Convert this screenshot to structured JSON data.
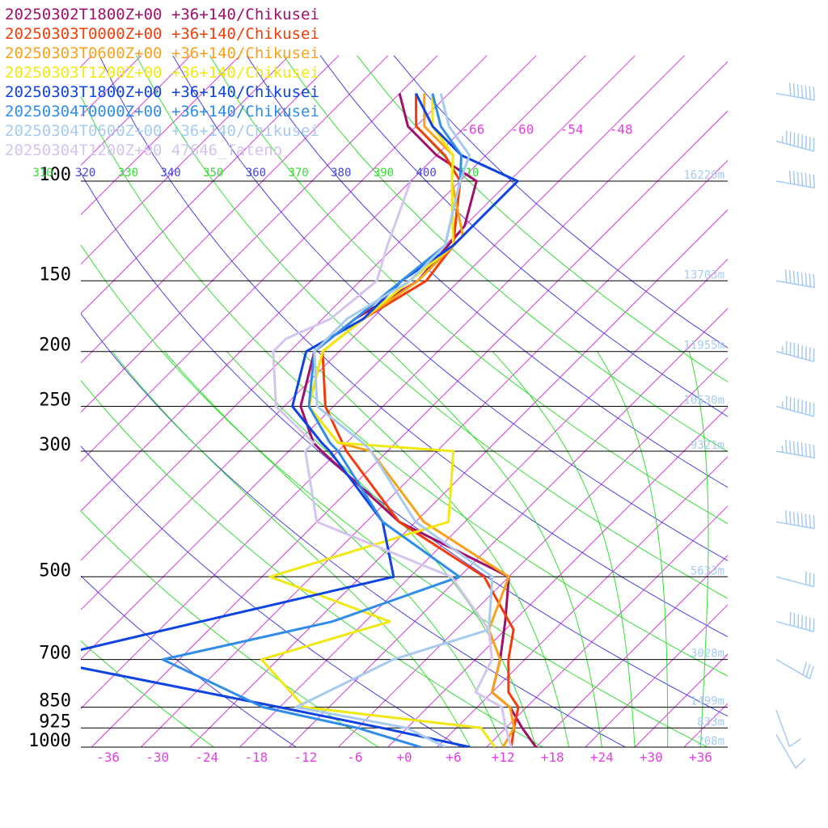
{
  "chart_data": {
    "type": "line",
    "title": "",
    "xlabel": "",
    "ylabel": "",
    "legend": "top-left",
    "legend_entries": [
      {
        "label": "20250302T1800Z+00 +36+140/Chikusei",
        "color": "#a0106a"
      },
      {
        "label": "20250303T0000Z+00 +36+140/Chikusei",
        "color": "#f23c0a"
      },
      {
        "label": "20250303T0600Z+00 +36+140/Chikusei",
        "color": "#f7a21a"
      },
      {
        "label": "20250303T1200Z+00 +36+140/Chikusei",
        "color": "#f0e812"
      },
      {
        "label": "20250303T1800Z+00 +36+140/Chikusei",
        "color": "#0e44e0"
      },
      {
        "label": "20250304T0000Z+00 +36+140/Chikusei",
        "color": "#2f8de8"
      },
      {
        "label": "20250304T0600Z+00 +36+140/Chikusei",
        "color": "#a6cbee"
      },
      {
        "label": "20250304T1200Z+00 47646_Tateno",
        "color": "#d4c4ee"
      }
    ],
    "pressure_levels": [
      {
        "p": 100,
        "label": "100",
        "height": "16220m"
      },
      {
        "p": 150,
        "label": "150",
        "height": "13703m"
      },
      {
        "p": 200,
        "label": "200",
        "height": "11955m"
      },
      {
        "p": 250,
        "label": "250",
        "height": "10530m"
      },
      {
        "p": 300,
        "label": "300",
        "height": "9321m"
      },
      {
        "p": 500,
        "label": "500",
        "height": "5633m"
      },
      {
        "p": 700,
        "label": "700",
        "height": "3028m"
      },
      {
        "p": 850,
        "label": "850",
        "height": "1499m"
      },
      {
        "p": 925,
        "label": "925",
        "height": "833m"
      },
      {
        "p": 1000,
        "label": "1000",
        "height": "208m"
      }
    ],
    "temperature_ticks": [
      "-36",
      "-30",
      "-24",
      "-18",
      "-12",
      "-6",
      "+0",
      "+6",
      "+12",
      "+18",
      "+24",
      "+30",
      "+36"
    ],
    "upper_temperature_labels": [
      "-66",
      "-60",
      "-54",
      "-48"
    ],
    "theta_labels": [
      {
        "value": "310",
        "color": "#33dd33"
      },
      {
        "value": "320",
        "color": "#4444dd"
      },
      {
        "value": "330",
        "color": "#33dd33"
      },
      {
        "value": "340",
        "color": "#4444dd"
      },
      {
        "value": "350",
        "color": "#33dd33"
      },
      {
        "value": "360",
        "color": "#4444dd"
      },
      {
        "value": "370",
        "color": "#33dd33"
      },
      {
        "value": "380",
        "color": "#4444dd"
      },
      {
        "value": "390",
        "color": "#33dd33"
      },
      {
        "value": "400",
        "color": "#4444dd"
      },
      {
        "value": "410",
        "color": "#33dd33"
      }
    ],
    "temperature_range": [
      -36,
      36
    ],
    "pressure_range": [
      100,
      1000
    ],
    "series": [
      {
        "name": "20250302T1800Z+00 +36+140/Chikusei",
        "color": "#a0106a",
        "points": [
          [
            -80,
            70
          ],
          [
            -75,
            80
          ],
          [
            -68,
            90
          ],
          [
            -60,
            100
          ],
          [
            -56,
            120
          ],
          [
            -55,
            150
          ],
          [
            -58,
            175
          ],
          [
            -59,
            200
          ],
          [
            -54,
            250
          ],
          [
            -48,
            290
          ],
          [
            -46,
            300
          ],
          [
            -28,
            400
          ],
          [
            -8,
            500
          ],
          [
            -3,
            600
          ],
          [
            1,
            700
          ],
          [
            4,
            800
          ],
          [
            8,
            850
          ],
          [
            12,
            925
          ],
          [
            16,
            1000
          ]
        ]
      },
      {
        "name": "20250303T0000Z+00 +36+140/Chikusei",
        "color": "#f23c0a",
        "points": [
          [
            -78,
            70
          ],
          [
            -74,
            80
          ],
          [
            -67,
            90
          ],
          [
            -62,
            100
          ],
          [
            -55,
            130
          ],
          [
            -54,
            150
          ],
          [
            -57,
            175
          ],
          [
            -58,
            200
          ],
          [
            -51,
            250
          ],
          [
            -43,
            300
          ],
          [
            -28,
            400
          ],
          [
            -11,
            500
          ],
          [
            -1,
            620
          ],
          [
            2,
            700
          ],
          [
            6,
            800
          ],
          [
            9,
            850
          ],
          [
            11,
            925
          ],
          [
            13,
            1000
          ]
        ]
      },
      {
        "name": "20250303T0600Z+00 +36+140/Chikusei",
        "color": "#f7a21a",
        "points": [
          [
            -77,
            70
          ],
          [
            -73,
            80
          ],
          [
            -66,
            90
          ],
          [
            -63,
            100
          ],
          [
            -55,
            125
          ],
          [
            -55,
            150
          ],
          [
            -57,
            175
          ],
          [
            -58,
            200
          ],
          [
            -53,
            250
          ],
          [
            -45,
            290
          ],
          [
            -40,
            300
          ],
          [
            -25,
            400
          ],
          [
            -8,
            500
          ],
          [
            -4,
            620
          ],
          [
            1,
            700
          ],
          [
            4,
            800
          ],
          [
            8,
            850
          ],
          [
            11,
            925
          ],
          [
            12,
            1000
          ]
        ]
      },
      {
        "name": "20250303T1200Z+00 +36+140/Chikusei",
        "color": "#f0e812",
        "points": [
          [
            -76,
            70
          ],
          [
            -72,
            80
          ],
          [
            -66,
            90
          ],
          [
            -63,
            100
          ],
          [
            -55,
            130
          ],
          [
            -56,
            150
          ],
          [
            -57,
            175
          ],
          [
            -58,
            200
          ],
          [
            -53,
            250
          ],
          [
            -45,
            290
          ],
          [
            -30,
            300
          ],
          [
            -22,
            400
          ],
          [
            -37,
            500
          ],
          [
            -17,
            600
          ],
          [
            -28,
            700
          ],
          [
            -17,
            850
          ],
          [
            7,
            925
          ],
          [
            11,
            1000
          ]
        ]
      },
      {
        "name": "20250303T1800Z+00 +36+140/Chikusei",
        "color": "#0e44e0",
        "points": [
          [
            -78,
            70
          ],
          [
            -72,
            80
          ],
          [
            -65,
            90
          ],
          [
            -55,
            100
          ],
          [
            -55,
            130
          ],
          [
            -57,
            150
          ],
          [
            -57,
            175
          ],
          [
            -60,
            200
          ],
          [
            -55,
            250
          ],
          [
            -47,
            290
          ],
          [
            -45,
            300
          ],
          [
            -30,
            400
          ],
          [
            -22,
            500
          ],
          [
            -40,
            600
          ],
          [
            -55,
            700
          ],
          [
            -20,
            850
          ],
          [
            -5,
            925
          ],
          [
            8,
            1000
          ]
        ]
      },
      {
        "name": "20250304T0000Z+00 +36+140/Chikusei",
        "color": "#2f8de8",
        "points": [
          [
            -76,
            70
          ],
          [
            -71,
            80
          ],
          [
            -65,
            90
          ],
          [
            -62,
            100
          ],
          [
            -56,
            130
          ],
          [
            -57,
            150
          ],
          [
            -58,
            175
          ],
          [
            -59,
            200
          ],
          [
            -53,
            250
          ],
          [
            -46,
            290
          ],
          [
            -44,
            300
          ],
          [
            -30,
            400
          ],
          [
            -14,
            500
          ],
          [
            -24,
            600
          ],
          [
            -40,
            700
          ],
          [
            -22,
            850
          ],
          [
            -8,
            925
          ],
          [
            2,
            1000
          ]
        ]
      },
      {
        "name": "20250304T0600Z+00 +36+140/Chikusei",
        "color": "#a6cbee",
        "points": [
          [
            -75,
            70
          ],
          [
            -70,
            80
          ],
          [
            -64,
            90
          ],
          [
            -62,
            100
          ],
          [
            -56,
            130
          ],
          [
            -56,
            150
          ],
          [
            -59,
            175
          ],
          [
            -59,
            200
          ],
          [
            -52,
            250
          ],
          [
            -42,
            290
          ],
          [
            -40,
            300
          ],
          [
            -26,
            400
          ],
          [
            -10,
            500
          ],
          [
            -4,
            620
          ],
          [
            -12,
            700
          ],
          [
            -18,
            850
          ],
          [
            -2,
            925
          ],
          [
            5,
            1000
          ]
        ]
      },
      {
        "name": "20250304T1200Z+00 47646_Tateno",
        "color": "#d4c4ee",
        "points": [
          [
            -68,
            100
          ],
          [
            -63,
            130
          ],
          [
            -60,
            150
          ],
          [
            -61,
            175
          ],
          [
            -64,
            190
          ],
          [
            -64,
            200
          ],
          [
            -57,
            250
          ],
          [
            -48,
            290
          ],
          [
            -48,
            300
          ],
          [
            -38,
            400
          ],
          [
            -15,
            500
          ],
          [
            -4,
            620
          ],
          [
            0,
            700
          ],
          [
            2,
            800
          ],
          [
            7,
            850
          ],
          [
            10,
            925
          ],
          [
            13,
            1000
          ]
        ]
      }
    ],
    "wind_barbs": [
      {
        "p": 70,
        "direction": 280,
        "speed": 70
      },
      {
        "p": 85,
        "direction": 285,
        "speed": 150
      },
      {
        "p": 100,
        "direction": 280,
        "speed": 70
      },
      {
        "p": 150,
        "direction": 280,
        "speed": 80
      },
      {
        "p": 200,
        "direction": 285,
        "speed": 120
      },
      {
        "p": 250,
        "direction": 285,
        "speed": 90
      },
      {
        "p": 300,
        "direction": 280,
        "speed": 90
      },
      {
        "p": 400,
        "direction": 280,
        "speed": 80
      },
      {
        "p": 500,
        "direction": 285,
        "speed": 30
      },
      {
        "p": 600,
        "direction": 285,
        "speed": 70
      },
      {
        "p": 700,
        "direction": 300,
        "speed": 30
      },
      {
        "p": 860,
        "direction": 340,
        "speed": 10
      },
      {
        "p": 950,
        "direction": 330,
        "speed": 10
      }
    ]
  }
}
